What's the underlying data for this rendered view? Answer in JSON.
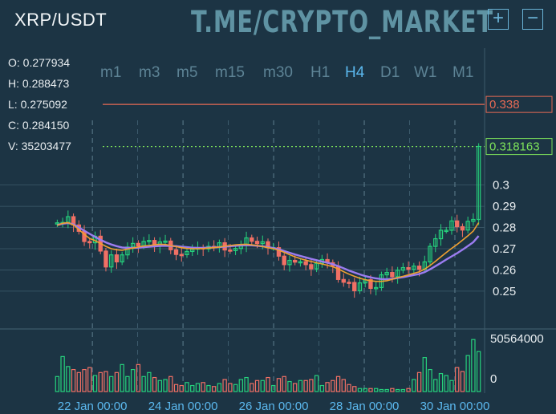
{
  "header": {
    "symbol": "XRP/USDT",
    "watermark": "T.ME/CRYPTO_MARKET",
    "zoom_in": "+",
    "zoom_out": "−"
  },
  "ohlc": [
    {
      "label": "O:",
      "value": "0.277934"
    },
    {
      "label": "H:",
      "value": "0.288473"
    },
    {
      "label": "L:",
      "value": "0.275092"
    },
    {
      "label": "C:",
      "value": "0.284150"
    },
    {
      "label": "V:",
      "value": "35203477"
    }
  ],
  "timeframes": [
    "m1",
    "m3",
    "m5",
    "m15",
    "m30",
    "H1",
    "H4",
    "D1",
    "W1",
    "M1"
  ],
  "active_timeframe": "H4",
  "colors": {
    "up": "#26d07c",
    "down": "#f07065",
    "ma_fast": "#f0a030",
    "ma_slow": "#9b7cf0",
    "grid": "#3d5a6a",
    "axis_text": "#e8edf0",
    "xlabel": "#5bb8ee"
  },
  "chart_data": {
    "type": "candlestick",
    "x_labels": [
      "22 Jan 00:00",
      "24 Jan 00:00",
      "26 Jan 00:00",
      "28 Jan 00:00",
      "30 Jan 00:00"
    ],
    "y_ticks": [
      "0.3",
      "0.29",
      "0.28",
      "0.27",
      "0.26",
      "0.25"
    ],
    "ylim": [
      0.239,
      0.3475
    ],
    "high_line": "0.338",
    "last_price": "0.318163",
    "volume_ticks": [
      "50564000",
      "0"
    ],
    "closes": [
      0.2822,
      0.2824,
      0.2851,
      0.2812,
      0.2782,
      0.2734,
      0.2728,
      0.2759,
      0.2689,
      0.2614,
      0.2671,
      0.2638,
      0.2671,
      0.2708,
      0.2725,
      0.2713,
      0.2734,
      0.2739,
      0.2712,
      0.2732,
      0.2736,
      0.2695,
      0.2673,
      0.2672,
      0.2687,
      0.2698,
      0.2705,
      0.2699,
      0.2711,
      0.2709,
      0.2728,
      0.2694,
      0.2691,
      0.2701,
      0.2717,
      0.2751,
      0.2735,
      0.2724,
      0.2733,
      0.2705,
      0.2705,
      0.2665,
      0.2625,
      0.2645,
      0.2637,
      0.2639,
      0.2625,
      0.2605,
      0.2631,
      0.2649,
      0.2634,
      0.2619,
      0.2555,
      0.2542,
      0.2541,
      0.2502,
      0.2539,
      0.2554,
      0.2513,
      0.2517,
      0.2577,
      0.2588,
      0.2568,
      0.2599,
      0.2611,
      0.2603,
      0.2618,
      0.2603,
      0.2638,
      0.2711,
      0.2747,
      0.2787,
      0.2787,
      0.2831,
      0.2804,
      0.2788,
      0.2829,
      0.2838,
      0.3182
    ],
    "volumes": [
      15000000,
      35000000,
      25000000,
      22000000,
      19000000,
      22000000,
      24000000,
      16000000,
      19000000,
      20000000,
      15000000,
      19000000,
      27000000,
      15000000,
      22000000,
      27000000,
      15000000,
      19000000,
      14000000,
      11000000,
      12000000,
      15000000,
      7000000,
      6000000,
      9000000,
      6000000,
      8000000,
      9000000,
      6000000,
      5000000,
      8000000,
      12000000,
      8000000,
      7000000,
      12000000,
      14000000,
      8000000,
      11000000,
      11000000,
      14000000,
      6000000,
      13000000,
      15000000,
      10000000,
      8000000,
      11000000,
      11000000,
      12000000,
      16000000,
      6000000,
      9000000,
      11000000,
      15000000,
      12000000,
      7000000,
      5000000,
      3000000,
      3000000,
      3000000,
      3000000,
      2000000,
      2000000,
      3000000,
      2000000,
      2000000,
      3000000,
      12000000,
      19000000,
      34000000,
      22000000,
      12000000,
      18000000,
      16000000,
      11000000,
      24000000,
      20000000,
      36000000,
      52000000,
      40000000
    ],
    "volume_max": 50564000,
    "ma_fast": [
      0.281,
      0.282,
      0.2823,
      0.2812,
      0.279,
      0.2768,
      0.2748,
      0.2738,
      0.2725,
      0.2711,
      0.27,
      0.2695,
      0.2693,
      0.2698,
      0.2703,
      0.2708,
      0.2713,
      0.2715,
      0.2718,
      0.2721,
      0.272,
      0.2715,
      0.271,
      0.2705,
      0.2701,
      0.27,
      0.27,
      0.2701,
      0.2703,
      0.2705,
      0.2708,
      0.2712,
      0.2715,
      0.2718,
      0.272,
      0.2721,
      0.2718,
      0.2715,
      0.271,
      0.2705,
      0.27,
      0.2693,
      0.2683,
      0.2672,
      0.2662,
      0.2653,
      0.2646,
      0.264,
      0.2634,
      0.2628,
      0.2622,
      0.2615,
      0.2605,
      0.2592,
      0.258,
      0.257,
      0.2561,
      0.2554,
      0.2549,
      0.2546,
      0.2546,
      0.2549,
      0.2556,
      0.2564,
      0.257,
      0.2577,
      0.2584,
      0.2591,
      0.2604,
      0.2621,
      0.2641,
      0.2662,
      0.2682,
      0.2702,
      0.272,
      0.274,
      0.2761,
      0.2783,
      0.2823
    ],
    "ma_slow": [
      0.2812,
      0.2818,
      0.2821,
      0.2815,
      0.28,
      0.2785,
      0.277,
      0.2756,
      0.2742,
      0.273,
      0.272,
      0.2712,
      0.2706,
      0.2704,
      0.2704,
      0.2705,
      0.2707,
      0.2709,
      0.2711,
      0.2713,
      0.2714,
      0.2713,
      0.2712,
      0.271,
      0.2707,
      0.2705,
      0.2704,
      0.2704,
      0.2705,
      0.2706,
      0.2708,
      0.271,
      0.2712,
      0.2714,
      0.2716,
      0.2717,
      0.2716,
      0.2714,
      0.2711,
      0.2708,
      0.2703,
      0.2697,
      0.2689,
      0.2681,
      0.2673,
      0.2666,
      0.2659,
      0.2652,
      0.2646,
      0.264,
      0.2634,
      0.2627,
      0.2618,
      0.2608,
      0.2597,
      0.2588,
      0.2579,
      0.2571,
      0.2565,
      0.256,
      0.2557,
      0.2556,
      0.2558,
      0.2562,
      0.2566,
      0.2571,
      0.2576,
      0.2581,
      0.259,
      0.2603,
      0.2618,
      0.2633,
      0.2649,
      0.2664,
      0.2679,
      0.2695,
      0.2713,
      0.2731,
      0.276
    ]
  }
}
